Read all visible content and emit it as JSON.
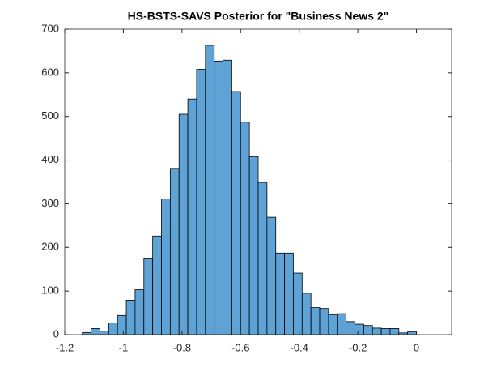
{
  "chart_data": {
    "type": "histogram",
    "title": "HS-BSTS-SAVS Posterior for \"Business News 2\"",
    "bins": [
      -1.14,
      -1.11,
      -1.08,
      -1.05,
      -1.02,
      -0.99,
      -0.96,
      -0.93,
      -0.9,
      -0.87,
      -0.84,
      -0.81,
      -0.78,
      -0.75,
      -0.72,
      -0.69,
      -0.66,
      -0.63,
      -0.6,
      -0.57,
      -0.54,
      -0.51,
      -0.48,
      -0.45,
      -0.42,
      -0.39,
      -0.36,
      -0.33,
      -0.3,
      -0.27,
      -0.24,
      -0.21,
      -0.18,
      -0.15,
      -0.12,
      -0.09,
      -0.06,
      -0.03,
      0
    ],
    "values": [
      5,
      14,
      8,
      27,
      44,
      79,
      103,
      174,
      226,
      311,
      381,
      505,
      540,
      608,
      663,
      627,
      629,
      557,
      487,
      408,
      349,
      269,
      187,
      187,
      141,
      95,
      62,
      60,
      46,
      48,
      30,
      24,
      21,
      15,
      14,
      14,
      4,
      7
    ],
    "color": "#5fa3d6",
    "xlim": [
      -1.2,
      0.12
    ],
    "xticks": [
      -1.2,
      -1,
      -0.8,
      -0.6,
      -0.4,
      -0.2,
      0
    ],
    "ylim": [
      0,
      700
    ],
    "yticks": [
      0,
      100,
      200,
      300,
      400,
      500,
      600,
      700
    ]
  }
}
